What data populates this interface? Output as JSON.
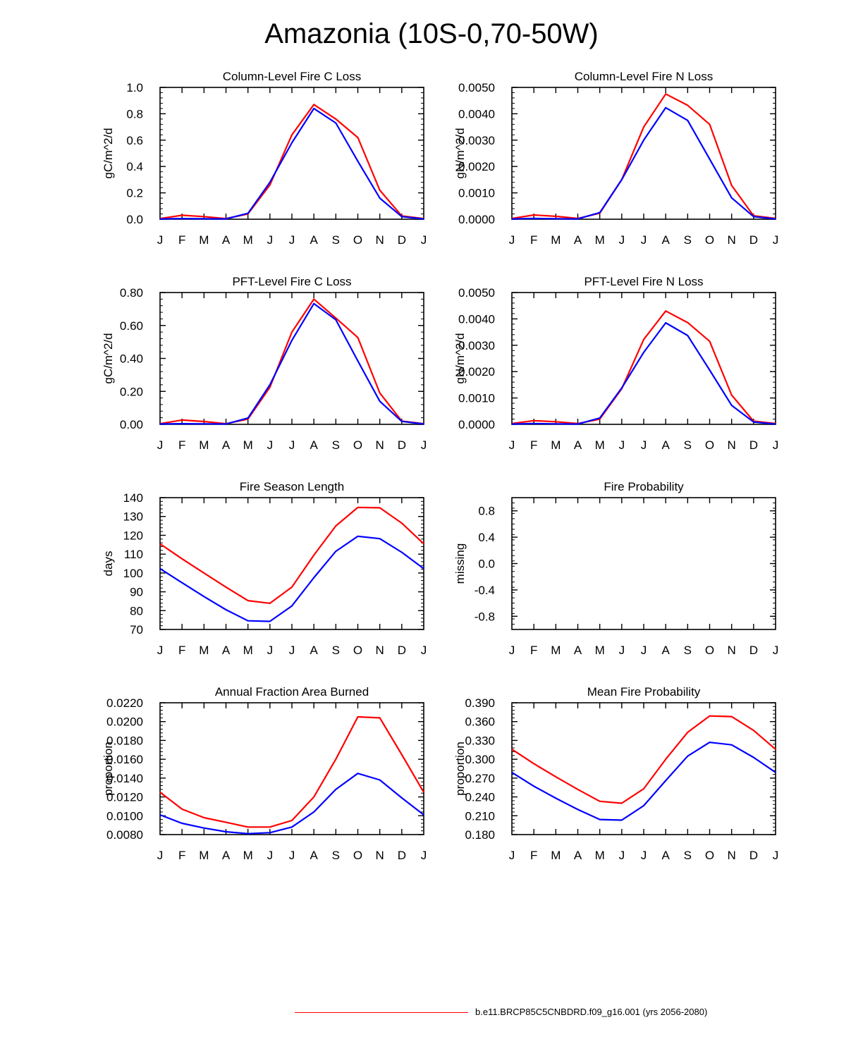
{
  "figure": {
    "title": "Amazonia (10S-0,70-50W)",
    "legend": {
      "label": "b.e11.BRCP85C5CNBDRD.f09_g16.001 (yrs 2056-2080)",
      "color": "#ff0000"
    },
    "colors": {
      "series_red": "#ff0000",
      "series_blue": "#0000ff",
      "axis": "#000000"
    }
  },
  "chart_data": [
    {
      "id": "column-fire-c-loss",
      "type": "line",
      "title": "Column-Level Fire C Loss",
      "ylabel": "gC/m^2/d",
      "xlabel": "",
      "categories": [
        "J",
        "F",
        "M",
        "A",
        "M",
        "J",
        "J",
        "A",
        "S",
        "O",
        "N",
        "D",
        "J"
      ],
      "ylim": [
        0,
        1.0
      ],
      "yticks": [
        "0.0",
        "0.2",
        "0.4",
        "0.6",
        "0.8",
        "1.0"
      ],
      "yticks_values": [
        0,
        0.2,
        0.4,
        0.6,
        0.8,
        1.0
      ],
      "series": [
        {
          "name": "red",
          "color": "#ff0000",
          "values": [
            0.005,
            0.03,
            0.02,
            0.005,
            0.04,
            0.26,
            0.64,
            0.87,
            0.76,
            0.62,
            0.22,
            0.025,
            0.005
          ]
        },
        {
          "name": "blue",
          "color": "#0000ff",
          "values": [
            0.002,
            0.005,
            0.003,
            0.002,
            0.045,
            0.28,
            0.58,
            0.84,
            0.73,
            0.44,
            0.16,
            0.02,
            0.002
          ]
        }
      ]
    },
    {
      "id": "column-fire-n-loss",
      "type": "line",
      "title": "Column-Level Fire N Loss",
      "ylabel": "gN/m^2/d",
      "xlabel": "",
      "categories": [
        "J",
        "F",
        "M",
        "A",
        "M",
        "J",
        "J",
        "A",
        "S",
        "O",
        "N",
        "D",
        "J"
      ],
      "ylim": [
        0,
        0.005
      ],
      "yticks": [
        "0.0000",
        "0.0010",
        "0.0020",
        "0.0030",
        "0.0040",
        "0.0050"
      ],
      "yticks_values": [
        0,
        0.001,
        0.002,
        0.003,
        0.004,
        0.005
      ],
      "series": [
        {
          "name": "red",
          "color": "#ff0000",
          "values": [
            3e-05,
            0.00016,
            0.00011,
            3e-05,
            0.00023,
            0.0015,
            0.0035,
            0.00475,
            0.00432,
            0.0036,
            0.00128,
            0.00013,
            3e-05
          ]
        },
        {
          "name": "blue",
          "color": "#0000ff",
          "values": [
            1e-05,
            3e-05,
            2e-05,
            1e-05,
            0.00025,
            0.0015,
            0.003,
            0.00423,
            0.00375,
            0.00228,
            0.00081,
            0.0001,
            1e-05
          ]
        }
      ]
    },
    {
      "id": "pft-fire-c-loss",
      "type": "line",
      "title": "PFT-Level Fire C Loss",
      "ylabel": "gC/m^2/d",
      "xlabel": "",
      "categories": [
        "J",
        "F",
        "M",
        "A",
        "M",
        "J",
        "J",
        "A",
        "S",
        "O",
        "N",
        "D",
        "J"
      ],
      "ylim": [
        0,
        0.8
      ],
      "yticks": [
        "0.00",
        "0.20",
        "0.40",
        "0.60",
        "0.80"
      ],
      "yticks_values": [
        0,
        0.2,
        0.4,
        0.6,
        0.8
      ],
      "series": [
        {
          "name": "red",
          "color": "#ff0000",
          "values": [
            0.004,
            0.026,
            0.017,
            0.004,
            0.032,
            0.225,
            0.56,
            0.76,
            0.645,
            0.527,
            0.19,
            0.02,
            0.004
          ]
        },
        {
          "name": "blue",
          "color": "#0000ff",
          "values": [
            0.002,
            0.004,
            0.003,
            0.002,
            0.038,
            0.24,
            0.51,
            0.733,
            0.635,
            0.385,
            0.14,
            0.018,
            0.002
          ]
        }
      ]
    },
    {
      "id": "pft-fire-n-loss",
      "type": "line",
      "title": "PFT-Level Fire N Loss",
      "ylabel": "gN/m^2/d",
      "xlabel": "",
      "categories": [
        "J",
        "F",
        "M",
        "A",
        "M",
        "J",
        "J",
        "A",
        "S",
        "O",
        "N",
        "D",
        "J"
      ],
      "ylim": [
        0,
        0.005
      ],
      "yticks": [
        "0.0000",
        "0.0010",
        "0.0020",
        "0.0030",
        "0.0040",
        "0.0050"
      ],
      "yticks_values": [
        0,
        0.001,
        0.002,
        0.003,
        0.004,
        0.005
      ],
      "series": [
        {
          "name": "red",
          "color": "#ff0000",
          "values": [
            3e-05,
            0.00014,
            0.0001,
            3e-05,
            0.0002,
            0.00135,
            0.00322,
            0.0043,
            0.00386,
            0.00315,
            0.00111,
            0.00012,
            3e-05
          ]
        },
        {
          "name": "blue",
          "color": "#0000ff",
          "values": [
            1e-05,
            3e-05,
            2e-05,
            1e-05,
            0.00024,
            0.00138,
            0.00273,
            0.00385,
            0.00337,
            0.00206,
            0.00072,
            9e-05,
            1e-05
          ]
        }
      ]
    },
    {
      "id": "fire-season-length",
      "type": "line",
      "title": "Fire Season Length",
      "ylabel": "days",
      "xlabel": "",
      "categories": [
        "J",
        "F",
        "M",
        "A",
        "M",
        "J",
        "J",
        "A",
        "S",
        "O",
        "N",
        "D",
        "J"
      ],
      "ylim": [
        70,
        140
      ],
      "yticks": [
        "70",
        "80",
        "90",
        "100",
        "110",
        "120",
        "130",
        "140"
      ],
      "yticks_values": [
        70,
        80,
        90,
        100,
        110,
        120,
        130,
        140
      ],
      "series": [
        {
          "name": "red",
          "color": "#ff0000",
          "values": [
            115.5,
            107.5,
            100,
            92.5,
            85.3,
            83.9,
            92.5,
            109.5,
            125,
            134.8,
            134.6,
            126.5,
            115.5
          ]
        },
        {
          "name": "blue",
          "color": "#0000ff",
          "values": [
            102.3,
            94.8,
            87.5,
            80.5,
            74.6,
            74.3,
            82.5,
            97.5,
            111.5,
            119.5,
            118.2,
            111,
            102.3
          ]
        }
      ]
    },
    {
      "id": "fire-probability",
      "type": "line",
      "title": "Fire Probability",
      "ylabel": "missing",
      "xlabel": "",
      "categories": [
        "J",
        "F",
        "M",
        "A",
        "M",
        "J",
        "J",
        "A",
        "S",
        "O",
        "N",
        "D",
        "J"
      ],
      "ylim": [
        -1.0,
        1.0
      ],
      "yticks": [
        "-0.8",
        "-0.4",
        "0.0",
        "0.4",
        "0.8"
      ],
      "yticks_values": [
        -0.8,
        -0.4,
        0.0,
        0.4,
        0.8
      ],
      "series": []
    },
    {
      "id": "annual-fraction-area-burned",
      "type": "line",
      "title": "Annual Fraction Area Burned",
      "ylabel": "proportion",
      "xlabel": "",
      "categories": [
        "J",
        "F",
        "M",
        "A",
        "M",
        "J",
        "J",
        "A",
        "S",
        "O",
        "N",
        "D",
        "J"
      ],
      "ylim": [
        0.008,
        0.022
      ],
      "yticks": [
        "0.0080",
        "0.0100",
        "0.0120",
        "0.0140",
        "0.0160",
        "0.0180",
        "0.0200",
        "0.0220"
      ],
      "yticks_values": [
        0.008,
        0.01,
        0.012,
        0.014,
        0.016,
        0.018,
        0.02,
        0.022
      ],
      "series": [
        {
          "name": "red",
          "color": "#ff0000",
          "values": [
            0.0125,
            0.0107,
            0.0098,
            0.0093,
            0.0088,
            0.0088,
            0.0095,
            0.012,
            0.016,
            0.0205,
            0.0204,
            0.0165,
            0.0125
          ]
        },
        {
          "name": "blue",
          "color": "#0000ff",
          "values": [
            0.0101,
            0.0092,
            0.0087,
            0.0083,
            0.0081,
            0.0082,
            0.0088,
            0.0104,
            0.0128,
            0.0145,
            0.0138,
            0.0119,
            0.0101
          ]
        }
      ]
    },
    {
      "id": "mean-fire-probability",
      "type": "line",
      "title": "Mean Fire Probability",
      "ylabel": "proportion",
      "xlabel": "",
      "categories": [
        "J",
        "F",
        "M",
        "A",
        "M",
        "J",
        "J",
        "A",
        "S",
        "O",
        "N",
        "D",
        "J"
      ],
      "ylim": [
        0.18,
        0.39
      ],
      "yticks": [
        "0.180",
        "0.210",
        "0.240",
        "0.270",
        "0.300",
        "0.330",
        "0.360",
        "0.390"
      ],
      "yticks_values": [
        0.18,
        0.21,
        0.24,
        0.27,
        0.3,
        0.33,
        0.36,
        0.39
      ],
      "series": [
        {
          "name": "red",
          "color": "#ff0000",
          "values": [
            0.316,
            0.293,
            0.272,
            0.252,
            0.233,
            0.23,
            0.253,
            0.3,
            0.343,
            0.369,
            0.368,
            0.346,
            0.316
          ]
        },
        {
          "name": "blue",
          "color": "#0000ff",
          "values": [
            0.279,
            0.257,
            0.238,
            0.22,
            0.204,
            0.203,
            0.226,
            0.266,
            0.305,
            0.327,
            0.323,
            0.303,
            0.279
          ]
        }
      ]
    }
  ]
}
